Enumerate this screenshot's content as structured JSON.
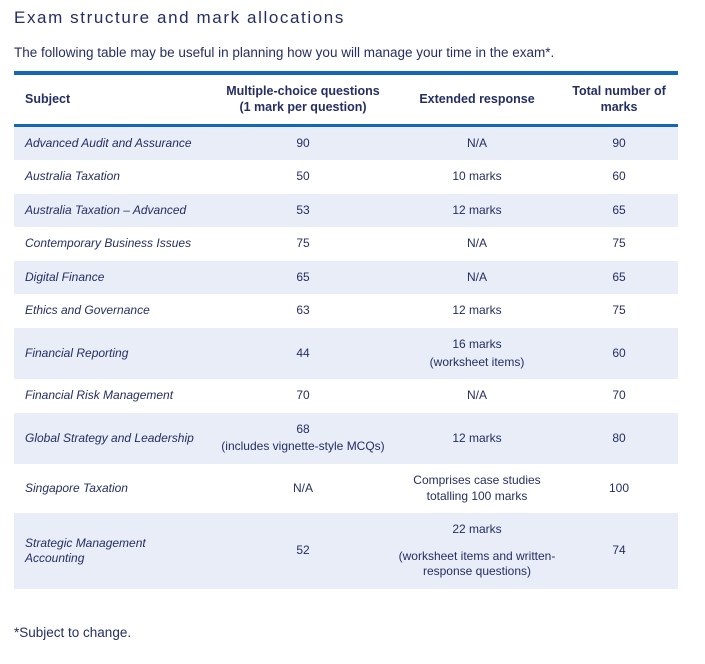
{
  "page": {
    "title": "Exam structure and mark allocations",
    "intro": "The following table may be useful in planning how you will manage your time in the exam*.",
    "footnote": "*Subject to change."
  },
  "colors": {
    "accent_rule_blue": "#1565b8",
    "navy_text": "#252e63",
    "row_alt_blue": "#e8edf7"
  },
  "table": {
    "columns": [
      {
        "label": "Subject"
      },
      {
        "label": "Multiple-choice questions",
        "sublabel": "(1 mark per question)"
      },
      {
        "label": "Extended response"
      },
      {
        "label": "Total number of marks"
      }
    ],
    "rows": [
      {
        "subject": "Advanced Audit and Assurance",
        "mcq": "90",
        "mcq_note": "",
        "extended": "N/A",
        "extended_note": "",
        "total": "90"
      },
      {
        "subject": "Australia Taxation",
        "mcq": "50",
        "mcq_note": "",
        "extended": "10 marks",
        "extended_note": "",
        "total": "60"
      },
      {
        "subject": "Australia Taxation – Advanced",
        "mcq": "53",
        "mcq_note": "",
        "extended": "12 marks",
        "extended_note": "",
        "total": "65"
      },
      {
        "subject": "Contemporary Business Issues",
        "mcq": "75",
        "mcq_note": "",
        "extended": "N/A",
        "extended_note": "",
        "total": "75"
      },
      {
        "subject": "Digital Finance",
        "mcq": "65",
        "mcq_note": "",
        "extended": "N/A",
        "extended_note": "",
        "total": "65"
      },
      {
        "subject": "Ethics and Governance",
        "mcq": "63",
        "mcq_note": "",
        "extended": "12 marks",
        "extended_note": "",
        "total": "75"
      },
      {
        "subject": "Financial Reporting",
        "mcq": "44",
        "mcq_note": "",
        "extended": "16 marks",
        "extended_note": "(worksheet items)",
        "total": "60"
      },
      {
        "subject": "Financial Risk Management",
        "mcq": "70",
        "mcq_note": "",
        "extended": "N/A",
        "extended_note": "",
        "total": "70"
      },
      {
        "subject": "Global Strategy and Leadership",
        "mcq": "68",
        "mcq_note": "(includes vignette-style MCQs)",
        "extended": "12 marks",
        "extended_note": "",
        "total": "80"
      },
      {
        "subject": "Singapore Taxation",
        "mcq": "N/A",
        "mcq_note": "",
        "extended": "Comprises case studies totalling 100 marks",
        "extended_note": "",
        "total": "100"
      },
      {
        "subject": "Strategic Management Accounting",
        "mcq": "52",
        "mcq_note": "",
        "extended": "22 marks",
        "extended_note": "(worksheet items and written-response questions)",
        "total": "74"
      }
    ]
  }
}
